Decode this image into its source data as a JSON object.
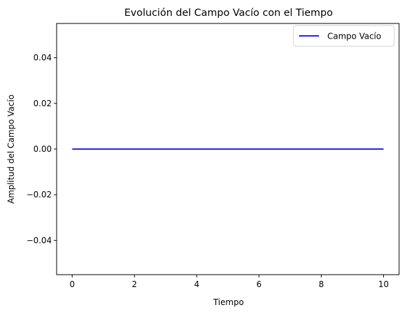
{
  "chart_data": {
    "type": "line",
    "title": "Evolución del Campo Vacío con el Tiempo",
    "xlabel": "Tiempo",
    "ylabel": "Amplitud del Campo Vacío",
    "xlim": [
      -0.5,
      10.5
    ],
    "ylim": [
      -0.055,
      0.055
    ],
    "xticks": [
      0,
      2,
      4,
      6,
      8,
      10
    ],
    "xtick_labels": [
      "0",
      "2",
      "4",
      "6",
      "8",
      "10"
    ],
    "yticks": [
      -0.04,
      -0.02,
      0.0,
      0.02,
      0.04
    ],
    "ytick_labels": [
      "−0.04",
      "−0.02",
      "0.00",
      "0.02",
      "0.04"
    ],
    "grid": false,
    "legend_position": "top-right",
    "series": [
      {
        "name": "Campo Vacío",
        "color": "#0000ff",
        "x": [
          0,
          10
        ],
        "y": [
          0,
          0
        ]
      }
    ]
  }
}
